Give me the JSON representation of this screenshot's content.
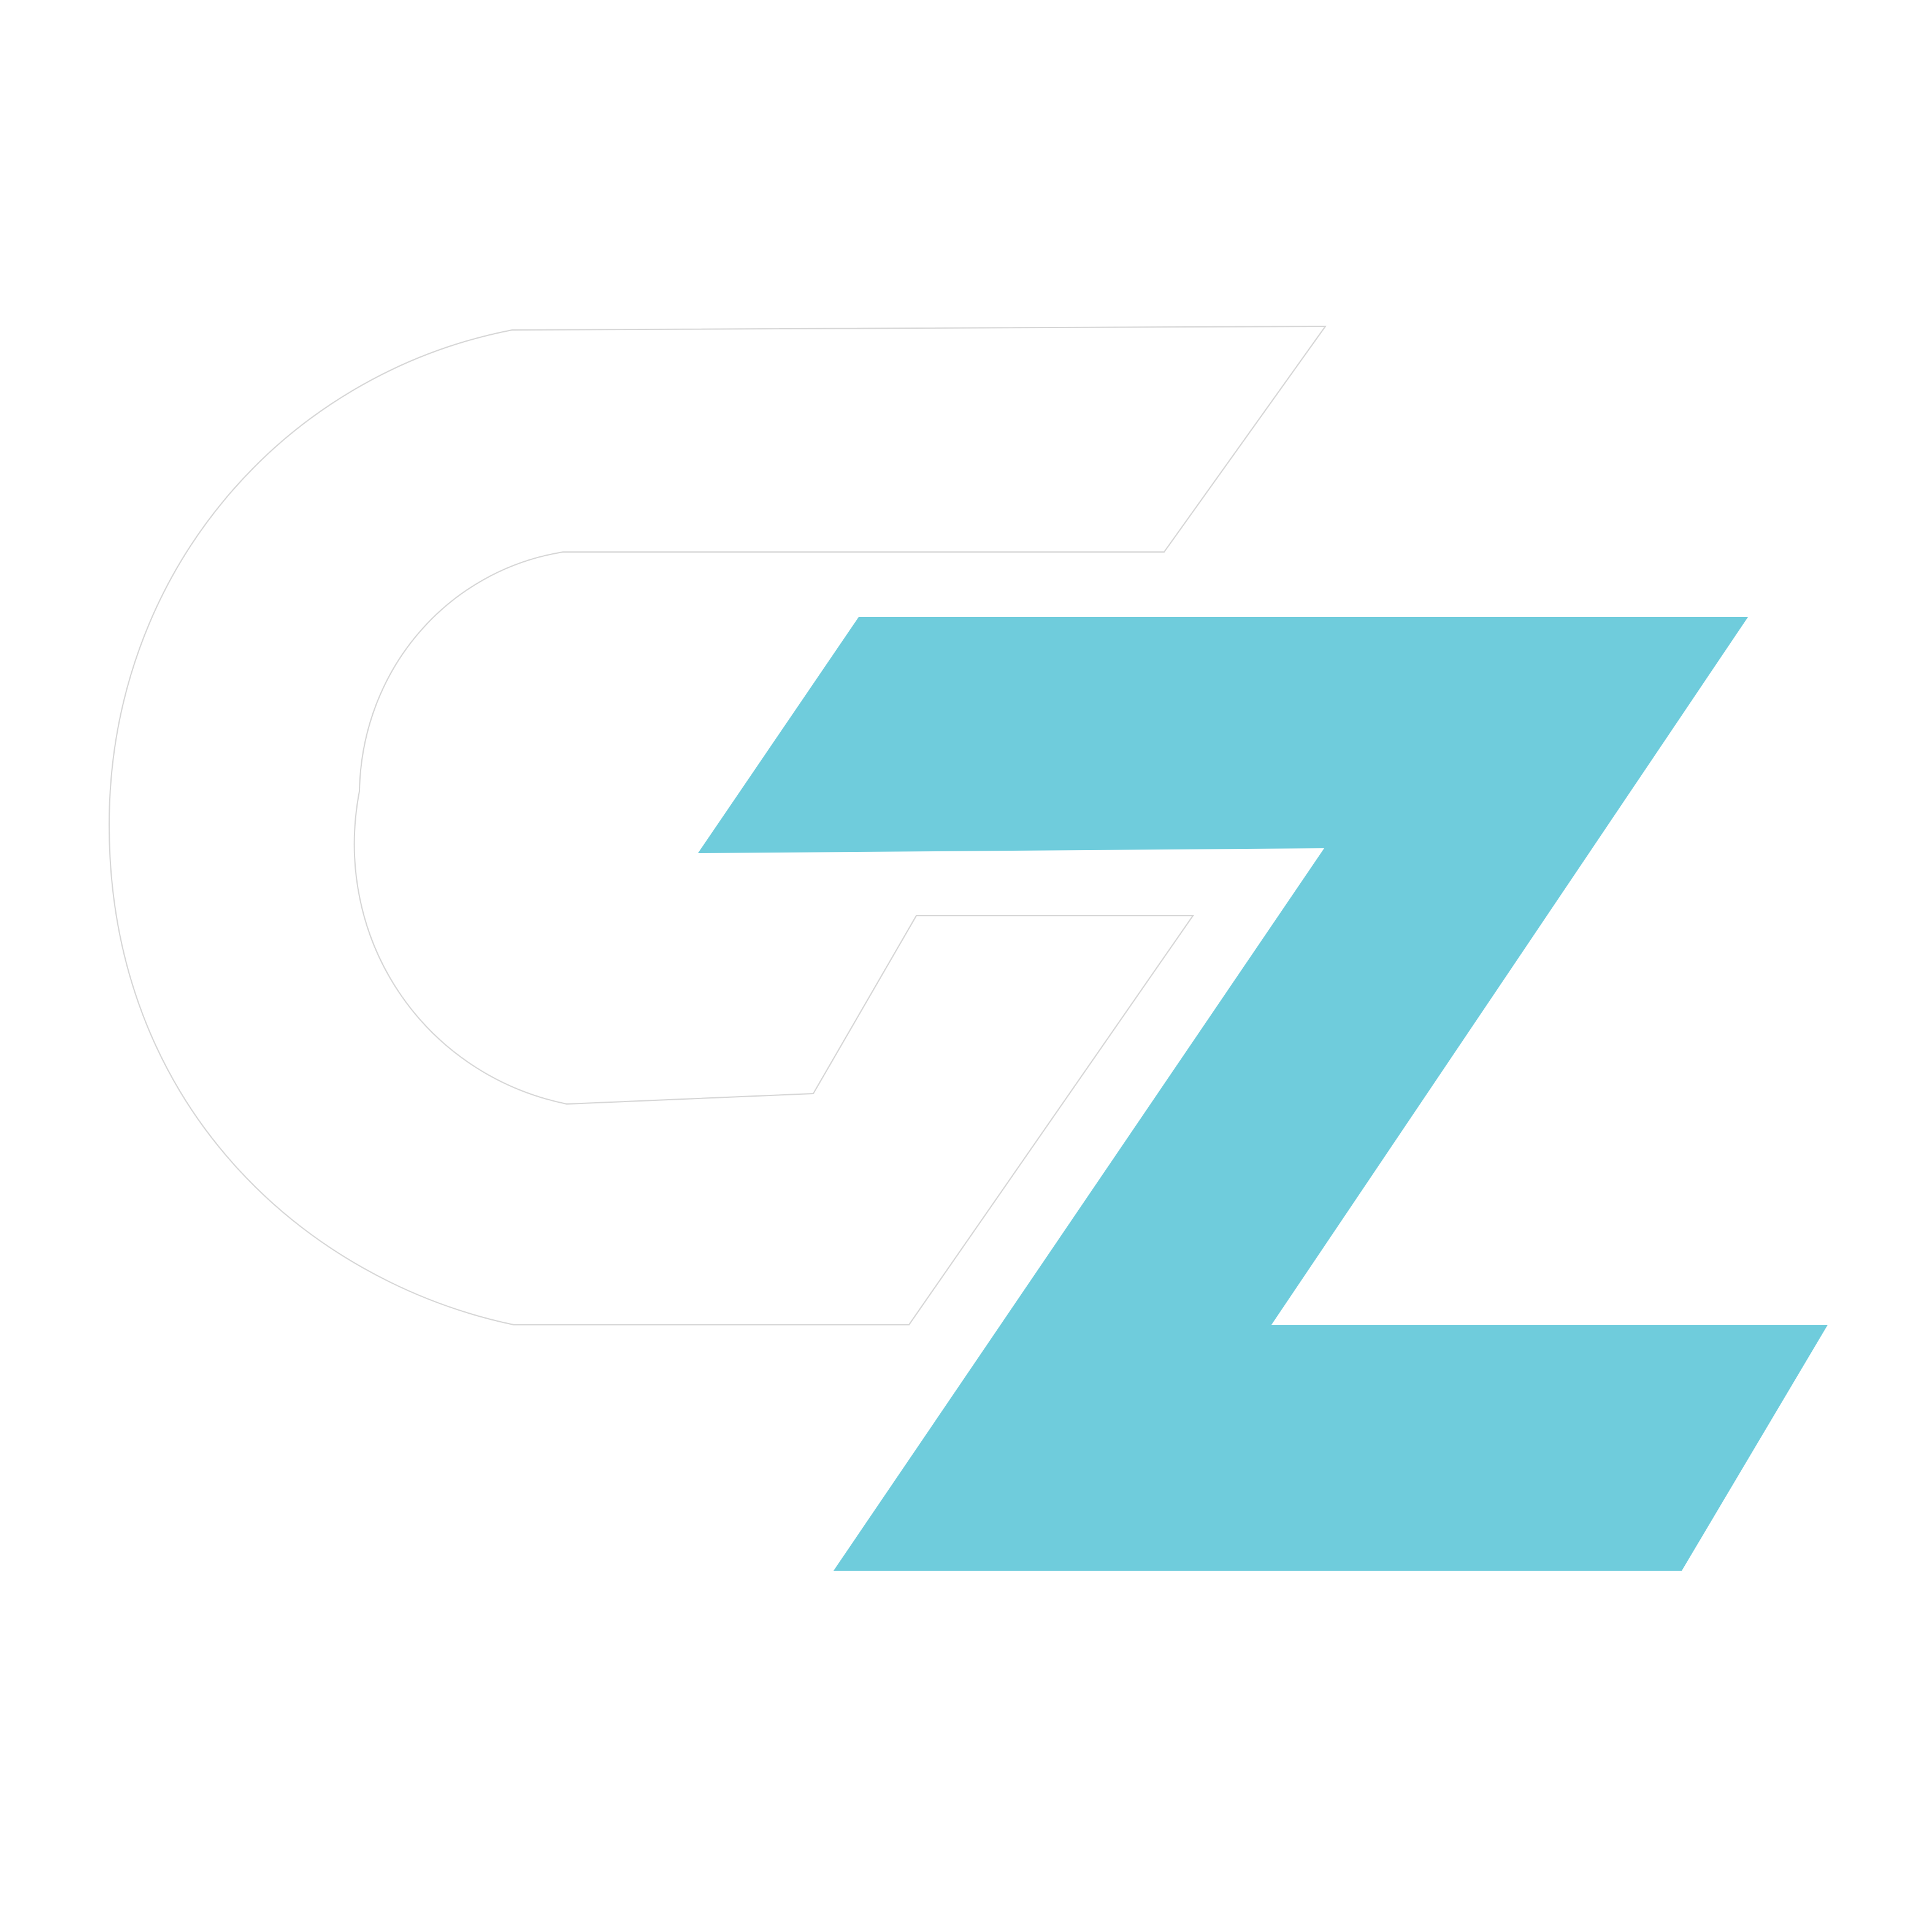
{
  "logo": {
    "letters": "GZ",
    "g_letter": {
      "icon": "g-letter-outline-icon",
      "fill": "#ffffff",
      "stroke": "#d6d6d6"
    },
    "z_letter": {
      "icon": "z-letter-icon",
      "fill": "#6fccdc"
    }
  },
  "background": "#ffffff"
}
